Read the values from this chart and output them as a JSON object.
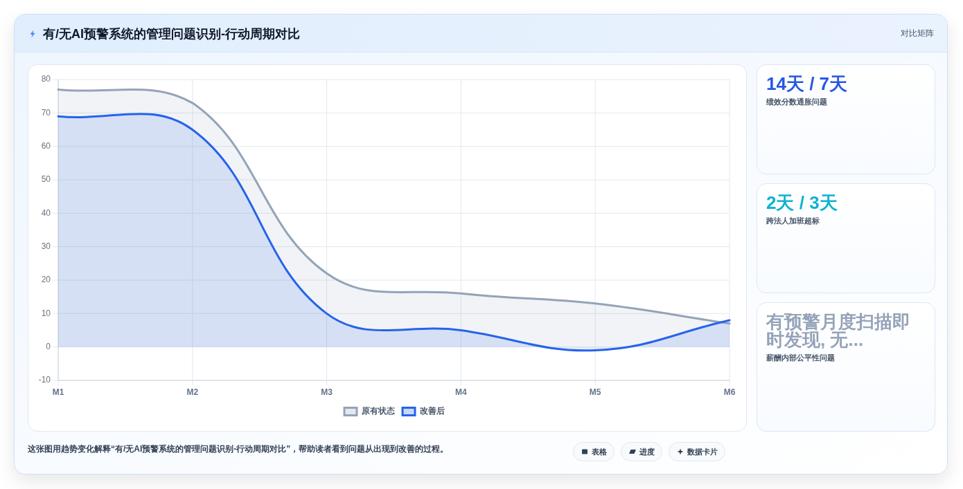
{
  "chart_data": [
    {
      "type": "area",
      "title": "有/无AI预警系统的管理问题识别-行动周期对比",
      "categories": [
        "M1",
        "M2",
        "M3",
        "M4",
        "M5",
        "M6"
      ],
      "series": [
        {
          "name": "原有状态",
          "color": "#94a3b8",
          "values": [
            77,
            73,
            22,
            16,
            13,
            7
          ]
        },
        {
          "name": "改善后",
          "color": "#2563eb",
          "values": [
            69,
            65,
            10,
            5,
            -1,
            8
          ]
        }
      ],
      "ylim": [
        -10,
        80
      ],
      "yticks": [
        -10,
        0,
        10,
        20,
        30,
        40,
        50,
        60,
        70,
        80
      ],
      "grid": true,
      "legend": "bottom",
      "annotations": [
        "对比矩阵",
        "这张图用趋势变化解释“有/无AI预警系统的管理问题识别-行动周期对比”，帮助读者看到问题从出现到改善的过程。",
        "表格",
        "进度",
        "数据卡片"
      ]
    },
    {
      "type": "other",
      "annotations": [
        "14天 / 7天",
        "绩效分数通胀问题",
        "2天 / 3天",
        "跨法人加班超标",
        "有预警月度扫描即时发现, 无...",
        "薪酬内部公平性问题"
      ]
    }
  ]
}
